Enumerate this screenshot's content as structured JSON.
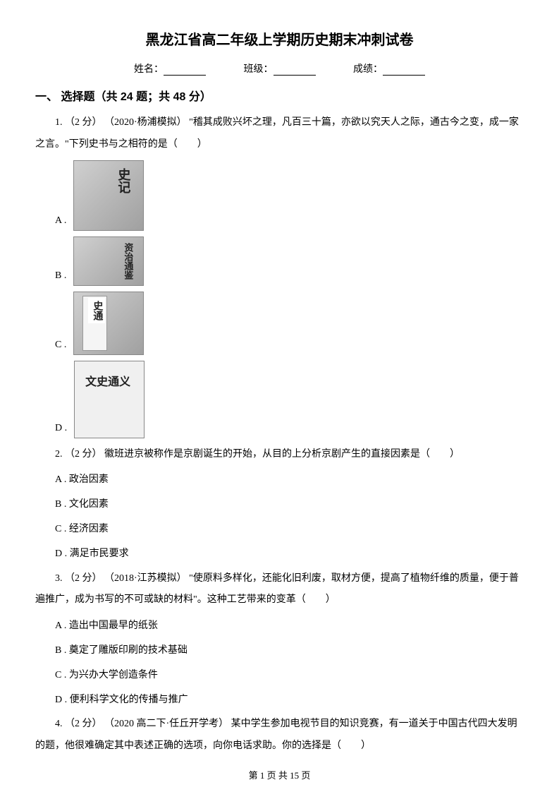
{
  "title": "黑龙江省高二年级上学期历史期末冲刺试卷",
  "info": {
    "name_label": "姓名：",
    "class_label": "班级：",
    "score_label": "成绩："
  },
  "section1": {
    "header": "一、 选择题（共 24 题；共 48 分）"
  },
  "q1": {
    "prompt": "1.  （2 分） （2020·杨浦模拟） \"稽其成败兴坏之理，凡百三十篇，亦欲以究天人之际，通古今之变，成一家之言。\"下列史书与之相符的是（　　）",
    "optA": "A .",
    "optB": "B .",
    "optC": "C .",
    "optD": "D .",
    "bookA": "史记",
    "bookB": "资治通鉴",
    "bookC": "史通",
    "bookD": "文史通义"
  },
  "q2": {
    "prompt": "2.  （2 分）  徽班进京被称作是京剧诞生的开始，从目的上分析京剧产生的直接因素是（　　）",
    "optA": "A . 政治因素",
    "optB": "B . 文化因素",
    "optC": "C . 经济因素",
    "optD": "D . 满足市民要求"
  },
  "q3": {
    "prompt": "3.  （2 分） （2018·江苏模拟） \"使原料多样化，还能化旧利废，取材方便，提高了植物纤维的质量，便于普遍推广，成为书写的不可或缺的材料\"。这种工艺带来的变革（　　）",
    "optA": "A . 造出中国最早的纸张",
    "optB": "B . 奠定了雕版印刷的技术基础",
    "optC": "C . 为兴办大学创造条件",
    "optD": "D . 便利科学文化的传播与推广"
  },
  "q4": {
    "prompt": "4.  （2 分） （2020 高二下·任丘开学考） 某中学生参加电视节目的知识竞赛，有一道关于中国古代四大发明的题，他很难确定其中表述正确的选项，向你电话求助。你的选择是（　　）"
  },
  "footer": {
    "text": "第 1 页 共 15 页"
  }
}
